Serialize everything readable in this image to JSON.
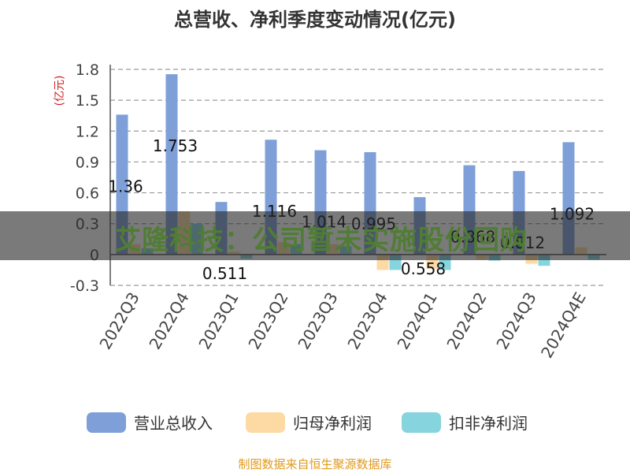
{
  "chart_data": {
    "type": "bar",
    "title": "总营收、净利季度变动情况(亿元)",
    "ylabel": "(亿元)",
    "ylim": [
      -0.3,
      1.8
    ],
    "yticks": [
      "1.8",
      "1.5",
      "1.2",
      "0.9",
      "0.6",
      "0.3",
      "0",
      "-0.3"
    ],
    "categories": [
      "2022Q3",
      "2022Q4",
      "2023Q1",
      "2023Q2",
      "2023Q3",
      "2023Q4",
      "2024Q1",
      "2024Q2",
      "2024Q3",
      "2024Q4E"
    ],
    "series": [
      {
        "name": "营业总收入",
        "color": "#7f9fd8",
        "values": [
          1.36,
          1.753,
          0.511,
          1.116,
          1.014,
          0.995,
          0.558,
          0.868,
          0.812,
          1.092
        ]
      },
      {
        "name": "归母净利润",
        "color": "#fdd9a3",
        "values": [
          0.1,
          0.42,
          0.03,
          0.12,
          0.1,
          -0.15,
          -0.14,
          -0.05,
          -0.09,
          0.07
        ]
      },
      {
        "name": "扣非净利润",
        "color": "#86d4dd",
        "values": [
          0.06,
          0.3,
          -0.04,
          0.1,
          0.08,
          -0.15,
          -0.15,
          -0.06,
          -0.11,
          -0.05
        ]
      }
    ],
    "data_labels": [
      "1.36",
      "1.753",
      "0.511",
      "1.116",
      "1.014",
      "0.995",
      "0.558",
      "0.868",
      "0.812",
      "1.092"
    ],
    "grid": true,
    "legend": "bottom"
  },
  "banner": {
    "text": "艾隆科技：公司暂未实施股份回购"
  },
  "footer": {
    "source": "制图数据来自恒生聚源数据库"
  }
}
